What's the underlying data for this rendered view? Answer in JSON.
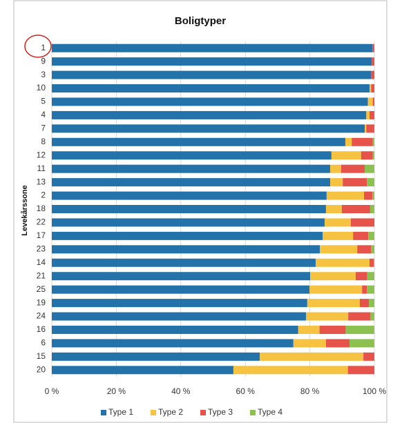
{
  "chart_data": {
    "type": "stacked_barh",
    "title": "Boligtyper",
    "y_label": "Levekårssone",
    "categories": [
      "1",
      "9",
      "3",
      "10",
      "5",
      "4",
      "7",
      "8",
      "12",
      "11",
      "13",
      "2",
      "18",
      "22",
      "17",
      "23",
      "14",
      "21",
      "25",
      "19",
      "24",
      "16",
      "6",
      "15",
      "20"
    ],
    "series": [
      {
        "name": "Type 1",
        "color": "#2472aa",
        "values": [
          99.4,
          99.2,
          99,
          98.5,
          98,
          97.5,
          97,
          91,
          86.7,
          86.3,
          86.3,
          85.2,
          85,
          84.6,
          84,
          83.1,
          81.8,
          80.1,
          79.9,
          79.2,
          78.8,
          76.4,
          74.9,
          64.5,
          56.3
        ]
      },
      {
        "name": "Type 2",
        "color": "#f5c242",
        "values": [
          0,
          0,
          0,
          0.5,
          1.5,
          1,
          0.5,
          2,
          9.2,
          3.4,
          3.9,
          11.6,
          4.9,
          8.1,
          9.4,
          11.6,
          16.7,
          14.1,
          16.3,
          16.3,
          13.1,
          6.6,
          10.1,
          32.1,
          35.5
        ]
      },
      {
        "name": "Type 3",
        "color": "#e5534b",
        "values": [
          0.6,
          0.8,
          1,
          1,
          0.5,
          1.5,
          2.5,
          6.5,
          3.6,
          7.3,
          7.5,
          2.6,
          8.8,
          7.3,
          4.7,
          4.3,
          1.3,
          3.6,
          1.5,
          2.8,
          6.9,
          8.1,
          7.3,
          3.4,
          8.2
        ]
      },
      {
        "name": "Type 4",
        "color": "#8cc152",
        "values": [
          0,
          0,
          0,
          0,
          0,
          0,
          0,
          0.5,
          0.5,
          3,
          2.3,
          0.6,
          1.3,
          0,
          1.9,
          1,
          0.2,
          2.2,
          2.3,
          1.7,
          1.2,
          8.9,
          7.7,
          0,
          0
        ]
      }
    ],
    "xlim": [
      0,
      100
    ],
    "xticks": [
      {
        "value": 0,
        "label": "0 %"
      },
      {
        "value": 20,
        "label": "20 %"
      },
      {
        "value": 40,
        "label": "40 %"
      },
      {
        "value": 60,
        "label": "60 %"
      },
      {
        "value": 80,
        "label": "80 %"
      },
      {
        "value": 100,
        "label": "100 %"
      }
    ],
    "grid": true,
    "legend": "bottom"
  }
}
